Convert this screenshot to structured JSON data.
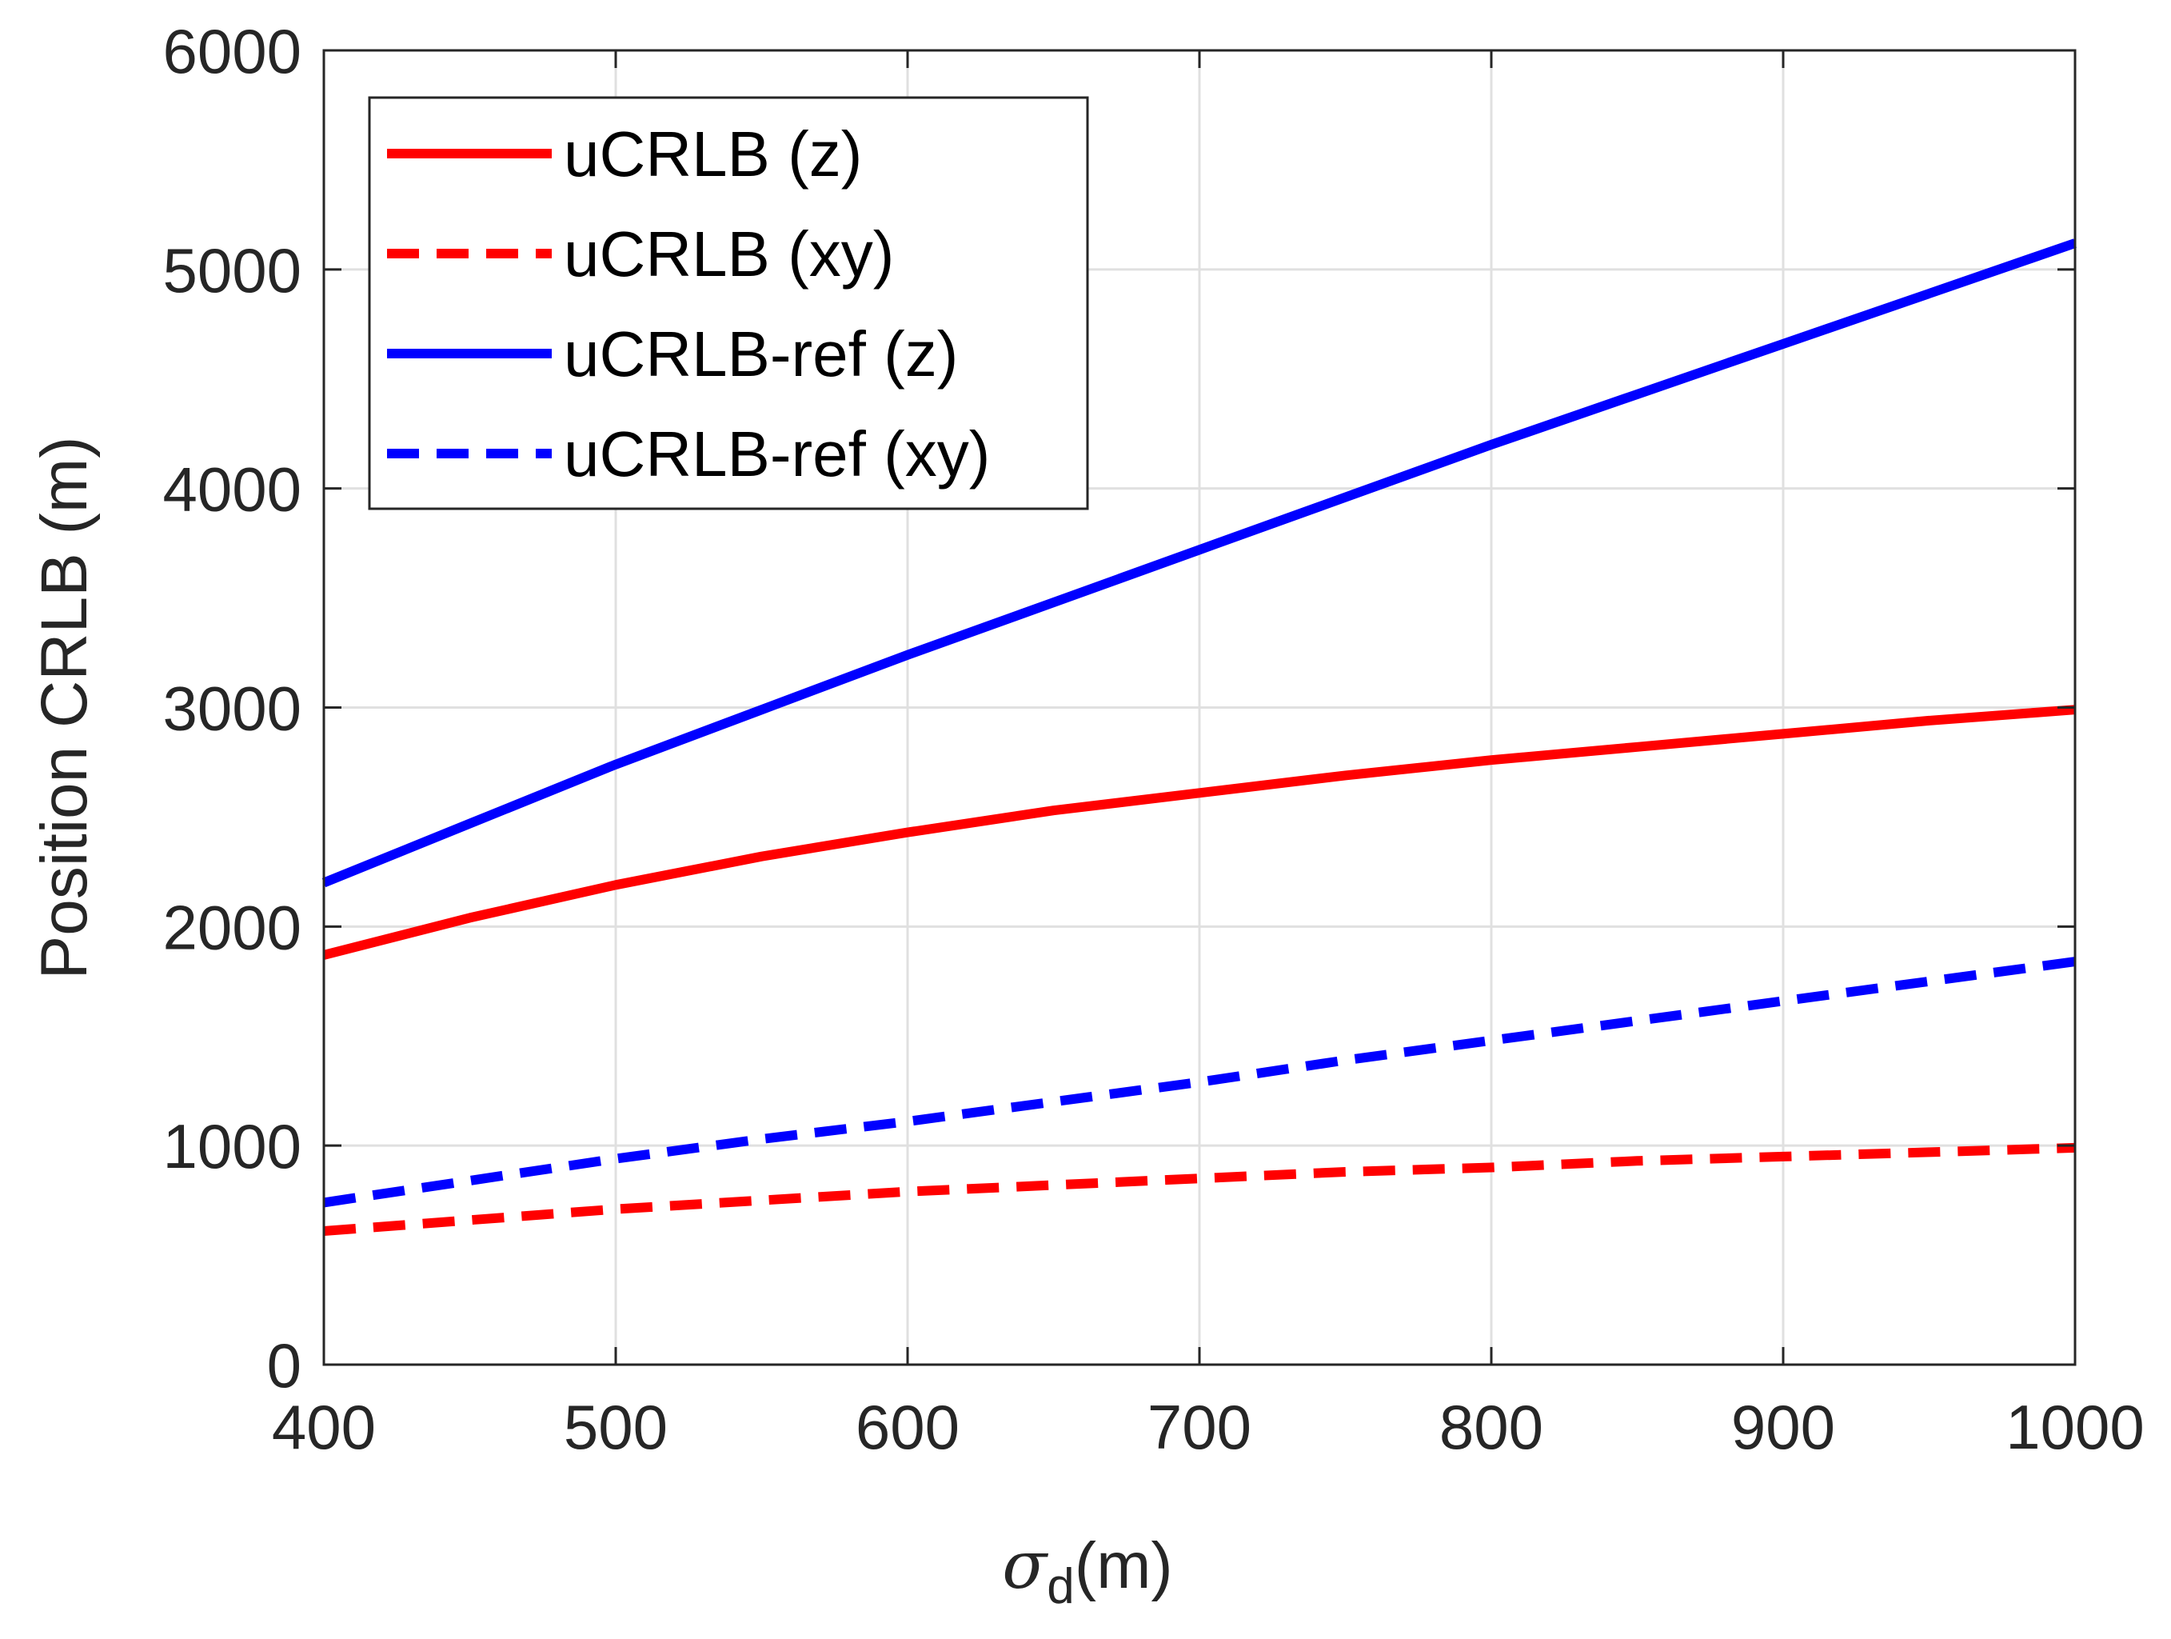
{
  "chart_data": {
    "type": "line",
    "title": "",
    "xlabel": {
      "symbol": "σ",
      "subscript": "d",
      "unit": "(m)"
    },
    "ylabel": "Position CRLB (m)",
    "xlim": [
      400,
      1000
    ],
    "ylim": [
      0,
      6000
    ],
    "xticks": [
      400,
      500,
      600,
      700,
      800,
      900,
      1000
    ],
    "yticks": [
      0,
      1000,
      2000,
      3000,
      4000,
      5000,
      6000
    ],
    "grid": true,
    "legend_position": "top-left",
    "x": [
      400,
      450,
      500,
      550,
      600,
      650,
      700,
      750,
      800,
      850,
      900,
      950,
      1000
    ],
    "series": [
      {
        "name": "uCRLB (z)",
        "color": "#ff0000",
        "style": "solid",
        "values": [
          1870,
          2040,
          2190,
          2320,
          2430,
          2530,
          2610,
          2690,
          2760,
          2820,
          2880,
          2940,
          2990
        ]
      },
      {
        "name": "uCRLB (xy)",
        "color": "#ff0000",
        "style": "dashed",
        "values": [
          610,
          660,
          710,
          750,
          790,
          820,
          850,
          880,
          900,
          930,
          950,
          970,
          990
        ]
      },
      {
        "name": "uCRLB-ref (z)",
        "color": "#0000ff",
        "style": "solid",
        "values": [
          2200,
          2470,
          2740,
          2990,
          3240,
          3480,
          3720,
          3960,
          4200,
          4430,
          4660,
          4890,
          5120
        ]
      },
      {
        "name": "uCRLB-ref (xy)",
        "color": "#0000ff",
        "style": "dashed",
        "values": [
          740,
          840,
          940,
          1030,
          1110,
          1200,
          1290,
          1390,
          1480,
          1570,
          1660,
          1750,
          1840
        ]
      }
    ]
  }
}
